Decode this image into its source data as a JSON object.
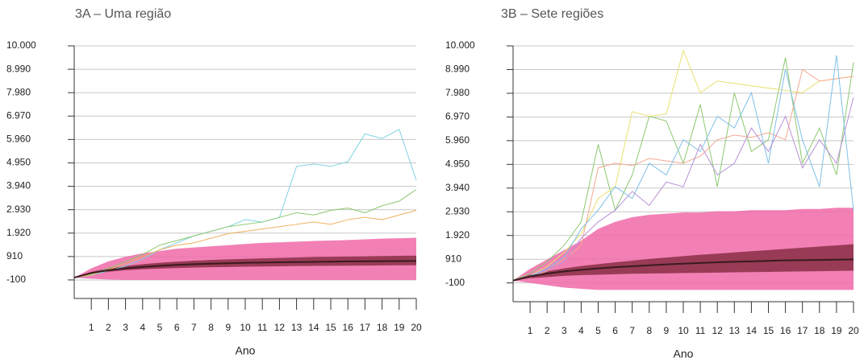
{
  "chart_data": [
    {
      "type": "line",
      "title": "3A – Uma região",
      "x_label": "Ano",
      "x": [
        0,
        1,
        2,
        3,
        4,
        5,
        6,
        7,
        8,
        9,
        10,
        11,
        12,
        13,
        14,
        15,
        16,
        17,
        18,
        19,
        20
      ],
      "xlim": [
        0,
        20
      ],
      "xticks": [
        1,
        2,
        3,
        4,
        5,
        6,
        7,
        8,
        9,
        10,
        11,
        12,
        13,
        14,
        15,
        16,
        17,
        18,
        19,
        20
      ],
      "ylim": [
        -900,
        10000
      ],
      "yticks": [
        -100,
        910,
        {
          "value": 1920,
          "label": "1.920"
        },
        {
          "value": 2930,
          "label": "2.930"
        },
        {
          "value": 3940,
          "label": "3.940"
        },
        {
          "value": 4950,
          "label": "4.950"
        },
        {
          "value": 5960,
          "label": "5.960"
        },
        {
          "value": 6970,
          "label": "6.970"
        },
        {
          "value": 7980,
          "label": "7.980"
        },
        {
          "value": 8990,
          "label": "8.990"
        },
        {
          "value": 10000,
          "label": "10.000"
        }
      ],
      "grid": true,
      "bands": [
        {
          "color": "#f06aa8",
          "high": [
            0,
            400,
            700,
            900,
            1050,
            1150,
            1250,
            1300,
            1350,
            1400,
            1450,
            1500,
            1520,
            1550,
            1580,
            1600,
            1620,
            1650,
            1680,
            1700,
            1720
          ],
          "low": [
            0,
            -50,
            -80,
            -100,
            -100,
            -100,
            -100,
            -100,
            -100,
            -100,
            -100,
            -100,
            -100,
            -100,
            -100,
            -100,
            -100,
            -100,
            -100,
            -100,
            -100
          ]
        },
        {
          "color": "#8a2f45",
          "high": [
            0,
            250,
            400,
            500,
            580,
            640,
            690,
            730,
            760,
            790,
            810,
            830,
            850,
            870,
            890,
            900,
            910,
            920,
            930,
            940,
            950
          ],
          "low": [
            0,
            150,
            250,
            320,
            360,
            390,
            410,
            430,
            450,
            460,
            470,
            480,
            490,
            500,
            505,
            510,
            515,
            520,
            525,
            530,
            535
          ]
        }
      ],
      "series": [
        {
          "color": "#7fd3e0",
          "values": [
            0,
            100,
            300,
            500,
            800,
            1200,
            1500,
            1800,
            2000,
            2200,
            2500,
            2400,
            2600,
            4800,
            4900,
            4800,
            5000,
            6200,
            6000,
            6400,
            4200
          ]
        },
        {
          "color": "#8cc870",
          "values": [
            0,
            150,
            400,
            700,
            1000,
            1400,
            1600,
            1800,
            2000,
            2200,
            2300,
            2400,
            2600,
            2800,
            2700,
            2900,
            3000,
            2800,
            3100,
            3300,
            3800
          ]
        },
        {
          "color": "#f0b060",
          "values": [
            0,
            120,
            350,
            600,
            900,
            1200,
            1400,
            1500,
            1700,
            1900,
            2000,
            2100,
            2200,
            2300,
            2400,
            2300,
            2500,
            2600,
            2500,
            2700,
            2900
          ]
        },
        {
          "color": "#3a1a20",
          "values": [
            0,
            200,
            320,
            400,
            460,
            510,
            550,
            580,
            600,
            620,
            640,
            650,
            660,
            670,
            680,
            690,
            700,
            705,
            710,
            715,
            720
          ]
        }
      ]
    },
    {
      "type": "line",
      "title": "3B – Sete regiões",
      "x_label": "Ano",
      "x": [
        0,
        1,
        2,
        3,
        4,
        5,
        6,
        7,
        8,
        9,
        10,
        11,
        12,
        13,
        14,
        15,
        16,
        17,
        18,
        19,
        20
      ],
      "xlim": [
        0,
        20
      ],
      "xticks": [
        1,
        2,
        3,
        4,
        5,
        6,
        7,
        8,
        9,
        10,
        11,
        12,
        13,
        14,
        15,
        16,
        17,
        18,
        19,
        20
      ],
      "ylim": [
        -900,
        10000
      ],
      "yticks": [
        -100,
        910,
        {
          "value": 1920,
          "label": "1.920"
        },
        {
          "value": 2930,
          "label": "2.930"
        },
        {
          "value": 3940,
          "label": "3.940"
        },
        {
          "value": 4950,
          "label": "4.950"
        },
        {
          "value": 5960,
          "label": "5.960"
        },
        {
          "value": 6970,
          "label": "6.970"
        },
        {
          "value": 7980,
          "label": "7.980"
        },
        {
          "value": 8990,
          "label": "8.990"
        },
        {
          "value": 10000,
          "label": "10.000"
        }
      ],
      "grid": true,
      "bands": [
        {
          "color": "#f06aa8",
          "high": [
            0,
            500,
            900,
            1300,
            1700,
            2200,
            2500,
            2700,
            2800,
            2850,
            2900,
            2900,
            2950,
            2950,
            3000,
            3000,
            3000,
            3050,
            3050,
            3100,
            3100
          ],
          "low": [
            0,
            -100,
            -200,
            -300,
            -350,
            -400,
            -400,
            -400,
            -400,
            -400,
            -400,
            -400,
            -400,
            -400,
            -400,
            -400,
            -400,
            -400,
            -400,
            -400,
            -400
          ]
        },
        {
          "color": "#8a2f45",
          "high": [
            0,
            250,
            400,
            520,
            620,
            700,
            780,
            850,
            920,
            980,
            1040,
            1100,
            1150,
            1200,
            1250,
            1300,
            1350,
            1400,
            1450,
            1500,
            1550
          ],
          "low": [
            0,
            100,
            150,
            200,
            230,
            250,
            270,
            290,
            300,
            310,
            320,
            330,
            340,
            350,
            360,
            370,
            380,
            390,
            400,
            410,
            420
          ]
        }
      ],
      "series": [
        {
          "color": "#8cc870",
          "values": [
            0,
            300,
            800,
            1500,
            2500,
            5800,
            3000,
            4500,
            7000,
            6800,
            5000,
            7500,
            4000,
            8000,
            5500,
            6000,
            9500,
            5000,
            6500,
            4500,
            9300
          ]
        },
        {
          "color": "#e8e070",
          "values": [
            0,
            200,
            600,
            1200,
            2000,
            3500,
            4000,
            7200,
            7000,
            7100,
            9800,
            8000,
            8500,
            8400,
            8300,
            8200,
            8100,
            8000,
            8500,
            8600,
            8700
          ]
        },
        {
          "color": "#f4a890",
          "values": [
            0,
            150,
            400,
            900,
            1500,
            4800,
            5000,
            4900,
            5200,
            5100,
            5000,
            5300,
            6000,
            6200,
            6100,
            6300,
            6000,
            9000,
            8500,
            8600,
            8700
          ]
        },
        {
          "color": "#80c0e8",
          "values": [
            0,
            200,
            500,
            1000,
            2200,
            3000,
            4000,
            3500,
            5000,
            4500,
            6000,
            5500,
            7000,
            6500,
            8000,
            5000,
            9000,
            6000,
            4000,
            9600,
            3000
          ]
        },
        {
          "color": "#b890d8",
          "values": [
            0,
            180,
            450,
            800,
            1800,
            2500,
            3000,
            3800,
            3200,
            4200,
            4000,
            5800,
            4500,
            5000,
            6500,
            5500,
            7000,
            4800,
            6000,
            5000,
            7800
          ]
        },
        {
          "color": "#3a1a20",
          "values": [
            0,
            180,
            300,
            390,
            460,
            520,
            570,
            610,
            650,
            690,
            720,
            750,
            780,
            800,
            820,
            840,
            860,
            870,
            880,
            890,
            900
          ]
        }
      ]
    }
  ]
}
